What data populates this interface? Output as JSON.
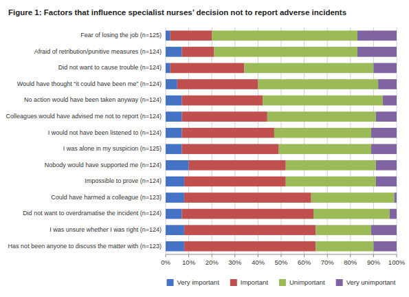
{
  "chart_data": {
    "type": "bar",
    "orientation": "horizontal",
    "stacked": true,
    "title": "Figure 1: Factors that influence specialist nurses’ decision not to report adverse incidents",
    "categories": [
      "Fear of losing the job (n=125)",
      "Afraid of retribution/punitive measures (n=124)",
      "Did not want to cause trouble (n=124)",
      "Would have thought “it could have been me” (n=124)",
      "No action would have been taken anyway (n=124)",
      "Colleagues would have advised me not to report (n=124)",
      "I would not have been listened to (n=124)",
      "I was alone in my suspicion (n=125)",
      "Nobody would have supported me (n=124)",
      "Impossible to prove (n=124)",
      "Could have harmed a colleague (n=123)",
      "Did not want to overdramatise the incident (n=124)",
      "I was unsure whether I was right (n=124)",
      "Has not been anyone to discuss the matter with (n=123)"
    ],
    "series": [
      {
        "name": "Very important",
        "color": "#4472C4",
        "values": [
          2,
          7,
          2,
          5,
          7,
          7,
          7,
          7,
          10,
          8,
          8,
          7,
          8,
          8
        ]
      },
      {
        "name": "Important",
        "color": "#C0504D",
        "values": [
          18,
          14,
          32,
          35,
          35,
          37,
          40,
          42,
          42,
          44,
          55,
          57,
          57,
          57
        ]
      },
      {
        "name": "Unimportant",
        "color": "#9BBB59",
        "values": [
          63,
          62,
          56,
          52,
          52,
          47,
          42,
          40,
          39,
          39,
          36,
          33,
          24,
          25
        ]
      },
      {
        "name": "Very unimportant",
        "color": "#8064A2",
        "values": [
          17,
          17,
          10,
          8,
          6,
          9,
          11,
          11,
          9,
          9,
          1,
          3,
          11,
          10
        ]
      }
    ],
    "xlim": [
      0,
      100
    ],
    "xticks": [
      {
        "value": 0,
        "label": "0%"
      },
      {
        "value": 10,
        "label": "10%"
      },
      {
        "value": 20,
        "label": "20%"
      },
      {
        "value": 30,
        "label": "30%"
      },
      {
        "value": 40,
        "label": "40%"
      },
      {
        "value": 50,
        "label": "50%"
      },
      {
        "value": 60,
        "label": "60%"
      },
      {
        "value": 70,
        "label": "70%"
      },
      {
        "value": 80,
        "label": "80%"
      },
      {
        "value": 90,
        "label": "90%"
      },
      {
        "value": 100,
        "label": "100%"
      }
    ],
    "grid": true,
    "legend": "bottom"
  }
}
